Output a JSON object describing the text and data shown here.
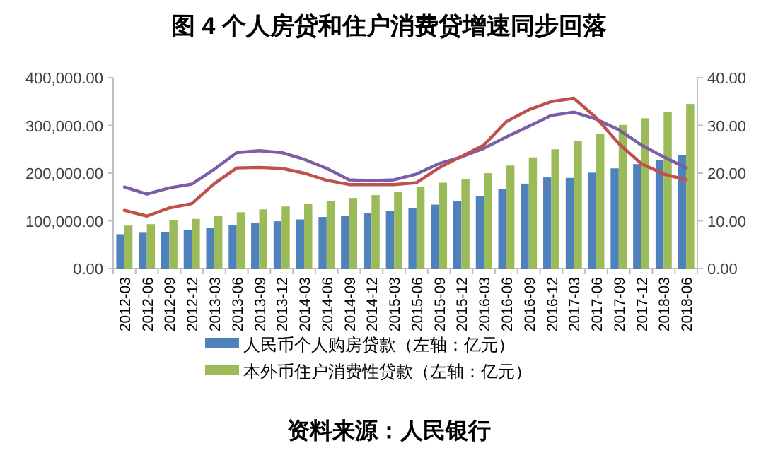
{
  "chart_data": {
    "type": "bar",
    "title": "图 4  个人房贷和住户消费贷增速同步回落",
    "categories": [
      "2012-03",
      "2012-06",
      "2012-09",
      "2012-12",
      "2013-03",
      "2013-06",
      "2013-09",
      "2013-12",
      "2014-03",
      "2014-06",
      "2014-09",
      "2014-12",
      "2015-03",
      "2015-06",
      "2015-09",
      "2015-12",
      "2016-03",
      "2016-06",
      "2016-09",
      "2016-12",
      "2017-03",
      "2017-06",
      "2017-09",
      "2017-12",
      "2018-03",
      "2018-06"
    ],
    "series": [
      {
        "name": "人民币个人购房贷款（左轴：亿元）",
        "color": "#4f81bd",
        "values": [
          72000,
          75000,
          77000,
          81000,
          86000,
          91000,
          95000,
          99000,
          103000,
          108000,
          111000,
          116000,
          120000,
          127000,
          134000,
          142000,
          152000,
          166000,
          178000,
          191000,
          190000,
          201000,
          210000,
          219000,
          228000,
          238000
        ]
      },
      {
        "name": "本外币住户消费性贷款（左轴：亿元）",
        "color": "#9bbb59",
        "values": [
          90000,
          93000,
          101000,
          104000,
          110000,
          118000,
          124000,
          130000,
          136000,
          142000,
          148000,
          154000,
          160000,
          171000,
          180000,
          188000,
          200000,
          216000,
          233000,
          250000,
          267000,
          283000,
          301000,
          315000,
          328000,
          345000
        ]
      },
      {
        "type": "line",
        "axis": "y2",
        "color": "#7b5ea7",
        "values": [
          17.1,
          15.6,
          16.9,
          17.7,
          20.8,
          24.3,
          24.7,
          24.3,
          22.9,
          21.0,
          18.6,
          18.4,
          18.6,
          19.8,
          22.0,
          23.4,
          25.2,
          27.6,
          29.8,
          32.1,
          32.8,
          31.3,
          29.1,
          25.9,
          23.4,
          21.1
        ]
      },
      {
        "type": "line",
        "axis": "y2",
        "color": "#c0504d",
        "values": [
          12.2,
          11.0,
          12.7,
          13.6,
          17.8,
          21.1,
          21.2,
          21.0,
          20.0,
          18.5,
          17.6,
          17.6,
          17.6,
          18.0,
          21.1,
          23.5,
          25.9,
          30.8,
          33.3,
          35.0,
          35.7,
          31.6,
          26.2,
          22.0,
          19.8,
          18.6
        ]
      }
    ],
    "ylim": [
      0,
      400000
    ],
    "yticks": [
      {
        "value": 0,
        "label": "0.00"
      },
      {
        "value": 100000,
        "label": "100,000.00"
      },
      {
        "value": 200000,
        "label": "200,000.00"
      },
      {
        "value": 300000,
        "label": "300,000.00"
      },
      {
        "value": 400000,
        "label": "400,000.00"
      }
    ],
    "y2lim": [
      0,
      40
    ],
    "y2ticks": [
      {
        "value": 0,
        "label": "0.00"
      },
      {
        "value": 10,
        "label": "10.00"
      },
      {
        "value": 20,
        "label": "20.00"
      },
      {
        "value": 30,
        "label": "30.00"
      },
      {
        "value": 40,
        "label": "40.00"
      }
    ],
    "legend": "bottom",
    "annotations": [
      "资料来源：人民银行"
    ]
  }
}
